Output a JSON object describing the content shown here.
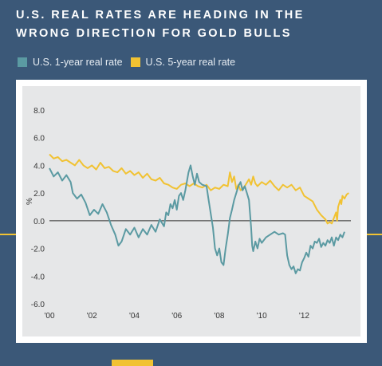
{
  "header": {
    "title_line1": "U.S. REAL RATES ARE HEADING IN THE",
    "title_line2": "WRONG DIRECTION FOR GOLD BULLS"
  },
  "colors": {
    "background": "#3b5878",
    "plot_bg": "#e6e7e8",
    "series_1yr": "#5b9aa2",
    "series_5yr": "#f1c232",
    "accent_line": "#f1c232"
  },
  "chart_data": {
    "type": "line",
    "title": "U.S. REAL RATES ARE HEADING IN THE WRONG DIRECTION FOR GOLD BULLS",
    "xlabel": "",
    "ylabel": "%",
    "xlim": [
      2000,
      2014.2
    ],
    "ylim": [
      -6.0,
      8.0
    ],
    "x_ticks": [
      2000,
      2002,
      2004,
      2006,
      2008,
      2010,
      2012
    ],
    "x_tick_labels": [
      "'00",
      "'02",
      "'04",
      "'06",
      "'08",
      "'10",
      "'12"
    ],
    "y_ticks": [
      8.0,
      6.0,
      4.0,
      2.0,
      0.0,
      -2.0,
      -4.0,
      -6.0
    ],
    "y_tick_labels": [
      "8.0",
      "6.0",
      "4.0",
      "2.0",
      "0.0",
      "-2.0",
      "-4.0",
      "-6.0"
    ],
    "grid": false,
    "zero_line": true,
    "legend_position": "top-left",
    "series": [
      {
        "name": "U.S. 1-year real rate",
        "color": "#5b9aa2",
        "points": [
          [
            2000.0,
            3.8
          ],
          [
            2000.2,
            3.2
          ],
          [
            2000.4,
            3.5
          ],
          [
            2000.6,
            2.9
          ],
          [
            2000.8,
            3.3
          ],
          [
            2001.0,
            2.8
          ],
          [
            2001.1,
            2.0
          ],
          [
            2001.3,
            1.6
          ],
          [
            2001.5,
            1.9
          ],
          [
            2001.7,
            1.3
          ],
          [
            2001.9,
            0.4
          ],
          [
            2002.1,
            0.8
          ],
          [
            2002.3,
            0.5
          ],
          [
            2002.5,
            1.2
          ],
          [
            2002.7,
            0.6
          ],
          [
            2002.9,
            -0.3
          ],
          [
            2003.1,
            -1.0
          ],
          [
            2003.25,
            -1.8
          ],
          [
            2003.4,
            -1.5
          ],
          [
            2003.6,
            -0.6
          ],
          [
            2003.8,
            -1.0
          ],
          [
            2004.0,
            -0.5
          ],
          [
            2004.2,
            -1.2
          ],
          [
            2004.4,
            -0.6
          ],
          [
            2004.6,
            -1.0
          ],
          [
            2004.8,
            -0.3
          ],
          [
            2005.0,
            -0.8
          ],
          [
            2005.2,
            0.1
          ],
          [
            2005.4,
            -0.4
          ],
          [
            2005.5,
            0.6
          ],
          [
            2005.6,
            0.4
          ],
          [
            2005.7,
            1.2
          ],
          [
            2005.8,
            0.9
          ],
          [
            2005.9,
            1.5
          ],
          [
            2006.0,
            0.8
          ],
          [
            2006.1,
            1.8
          ],
          [
            2006.2,
            2.0
          ],
          [
            2006.3,
            1.5
          ],
          [
            2006.4,
            2.2
          ],
          [
            2006.55,
            3.5
          ],
          [
            2006.65,
            4.0
          ],
          [
            2006.75,
            3.2
          ],
          [
            2006.85,
            2.6
          ],
          [
            2006.95,
            3.4
          ],
          [
            2007.05,
            2.8
          ],
          [
            2007.2,
            2.6
          ],
          [
            2007.4,
            2.5
          ],
          [
            2007.5,
            1.5
          ],
          [
            2007.6,
            0.5
          ],
          [
            2007.7,
            -0.5
          ],
          [
            2007.8,
            -2.0
          ],
          [
            2007.9,
            -2.5
          ],
          [
            2008.0,
            -2.0
          ],
          [
            2008.1,
            -3.0
          ],
          [
            2008.2,
            -3.2
          ],
          [
            2008.3,
            -2.0
          ],
          [
            2008.4,
            -1.0
          ],
          [
            2008.5,
            0.2
          ],
          [
            2008.6,
            0.8
          ],
          [
            2008.7,
            1.5
          ],
          [
            2008.8,
            2.0
          ],
          [
            2008.9,
            2.5
          ],
          [
            2009.0,
            2.8
          ],
          [
            2009.1,
            2.2
          ],
          [
            2009.2,
            2.5
          ],
          [
            2009.3,
            2.0
          ],
          [
            2009.4,
            1.5
          ],
          [
            2009.5,
            -0.5
          ],
          [
            2009.55,
            -1.8
          ],
          [
            2009.6,
            -2.2
          ],
          [
            2009.7,
            -1.5
          ],
          [
            2009.8,
            -2.0
          ],
          [
            2009.9,
            -1.3
          ],
          [
            2010.0,
            -1.6
          ],
          [
            2010.2,
            -1.2
          ],
          [
            2010.4,
            -1.0
          ],
          [
            2010.6,
            -0.8
          ],
          [
            2010.8,
            -1.0
          ],
          [
            2011.0,
            -0.9
          ],
          [
            2011.1,
            -1.0
          ],
          [
            2011.2,
            -2.5
          ],
          [
            2011.3,
            -3.2
          ],
          [
            2011.4,
            -3.5
          ],
          [
            2011.5,
            -3.3
          ],
          [
            2011.6,
            -3.8
          ],
          [
            2011.7,
            -3.5
          ],
          [
            2011.8,
            -3.6
          ],
          [
            2011.9,
            -3.0
          ],
          [
            2012.0,
            -2.7
          ],
          [
            2012.1,
            -2.3
          ],
          [
            2012.2,
            -2.6
          ],
          [
            2012.3,
            -1.8
          ],
          [
            2012.4,
            -2.0
          ],
          [
            2012.5,
            -1.5
          ],
          [
            2012.6,
            -1.6
          ],
          [
            2012.7,
            -1.3
          ],
          [
            2012.8,
            -1.9
          ],
          [
            2012.9,
            -1.6
          ],
          [
            2013.0,
            -1.8
          ],
          [
            2013.1,
            -1.4
          ],
          [
            2013.2,
            -1.6
          ],
          [
            2013.3,
            -1.2
          ],
          [
            2013.4,
            -1.8
          ],
          [
            2013.5,
            -1.2
          ],
          [
            2013.6,
            -1.4
          ],
          [
            2013.7,
            -1.0
          ],
          [
            2013.8,
            -1.2
          ],
          [
            2013.9,
            -0.8
          ]
        ]
      },
      {
        "name": "U.S. 5-year real rate",
        "color": "#f1c232",
        "points": [
          [
            2000.0,
            4.8
          ],
          [
            2000.2,
            4.5
          ],
          [
            2000.4,
            4.6
          ],
          [
            2000.6,
            4.3
          ],
          [
            2000.8,
            4.4
          ],
          [
            2001.0,
            4.2
          ],
          [
            2001.2,
            4.0
          ],
          [
            2001.4,
            4.4
          ],
          [
            2001.6,
            4.0
          ],
          [
            2001.8,
            3.8
          ],
          [
            2002.0,
            4.0
          ],
          [
            2002.2,
            3.7
          ],
          [
            2002.4,
            4.2
          ],
          [
            2002.6,
            3.8
          ],
          [
            2002.8,
            3.9
          ],
          [
            2003.0,
            3.6
          ],
          [
            2003.2,
            3.5
          ],
          [
            2003.4,
            3.8
          ],
          [
            2003.6,
            3.4
          ],
          [
            2003.8,
            3.6
          ],
          [
            2004.0,
            3.3
          ],
          [
            2004.2,
            3.5
          ],
          [
            2004.4,
            3.1
          ],
          [
            2004.6,
            3.4
          ],
          [
            2004.8,
            3.0
          ],
          [
            2005.0,
            2.9
          ],
          [
            2005.2,
            3.1
          ],
          [
            2005.4,
            2.7
          ],
          [
            2005.6,
            2.6
          ],
          [
            2005.8,
            2.4
          ],
          [
            2006.0,
            2.3
          ],
          [
            2006.2,
            2.6
          ],
          [
            2006.4,
            2.7
          ],
          [
            2006.6,
            2.5
          ],
          [
            2006.8,
            2.7
          ],
          [
            2007.0,
            2.5
          ],
          [
            2007.2,
            2.4
          ],
          [
            2007.4,
            2.6
          ],
          [
            2007.6,
            2.2
          ],
          [
            2007.8,
            2.4
          ],
          [
            2008.0,
            2.3
          ],
          [
            2008.2,
            2.6
          ],
          [
            2008.4,
            2.5
          ],
          [
            2008.5,
            3.5
          ],
          [
            2008.6,
            2.8
          ],
          [
            2008.7,
            3.2
          ],
          [
            2008.8,
            2.3
          ],
          [
            2008.9,
            2.6
          ],
          [
            2009.0,
            2.2
          ],
          [
            2009.2,
            2.5
          ],
          [
            2009.4,
            3.0
          ],
          [
            2009.5,
            2.6
          ],
          [
            2009.6,
            3.2
          ],
          [
            2009.7,
            2.7
          ],
          [
            2009.8,
            2.5
          ],
          [
            2010.0,
            2.8
          ],
          [
            2010.2,
            2.6
          ],
          [
            2010.4,
            2.9
          ],
          [
            2010.6,
            2.5
          ],
          [
            2010.8,
            2.2
          ],
          [
            2011.0,
            2.6
          ],
          [
            2011.2,
            2.4
          ],
          [
            2011.4,
            2.6
          ],
          [
            2011.6,
            2.2
          ],
          [
            2011.8,
            2.4
          ],
          [
            2012.0,
            1.8
          ],
          [
            2012.2,
            1.6
          ],
          [
            2012.4,
            1.4
          ],
          [
            2012.6,
            0.8
          ],
          [
            2012.8,
            0.4
          ],
          [
            2013.0,
            0.1
          ],
          [
            2013.1,
            -0.2
          ],
          [
            2013.2,
            -0.1
          ],
          [
            2013.3,
            -0.2
          ],
          [
            2013.4,
            0.2
          ],
          [
            2013.5,
            0.6
          ],
          [
            2013.55,
            0.0
          ],
          [
            2013.6,
            1.0
          ],
          [
            2013.7,
            1.5
          ],
          [
            2013.75,
            1.2
          ],
          [
            2013.8,
            1.8
          ],
          [
            2013.9,
            1.6
          ],
          [
            2014.0,
            1.9
          ],
          [
            2014.1,
            2.0
          ]
        ]
      }
    ]
  }
}
